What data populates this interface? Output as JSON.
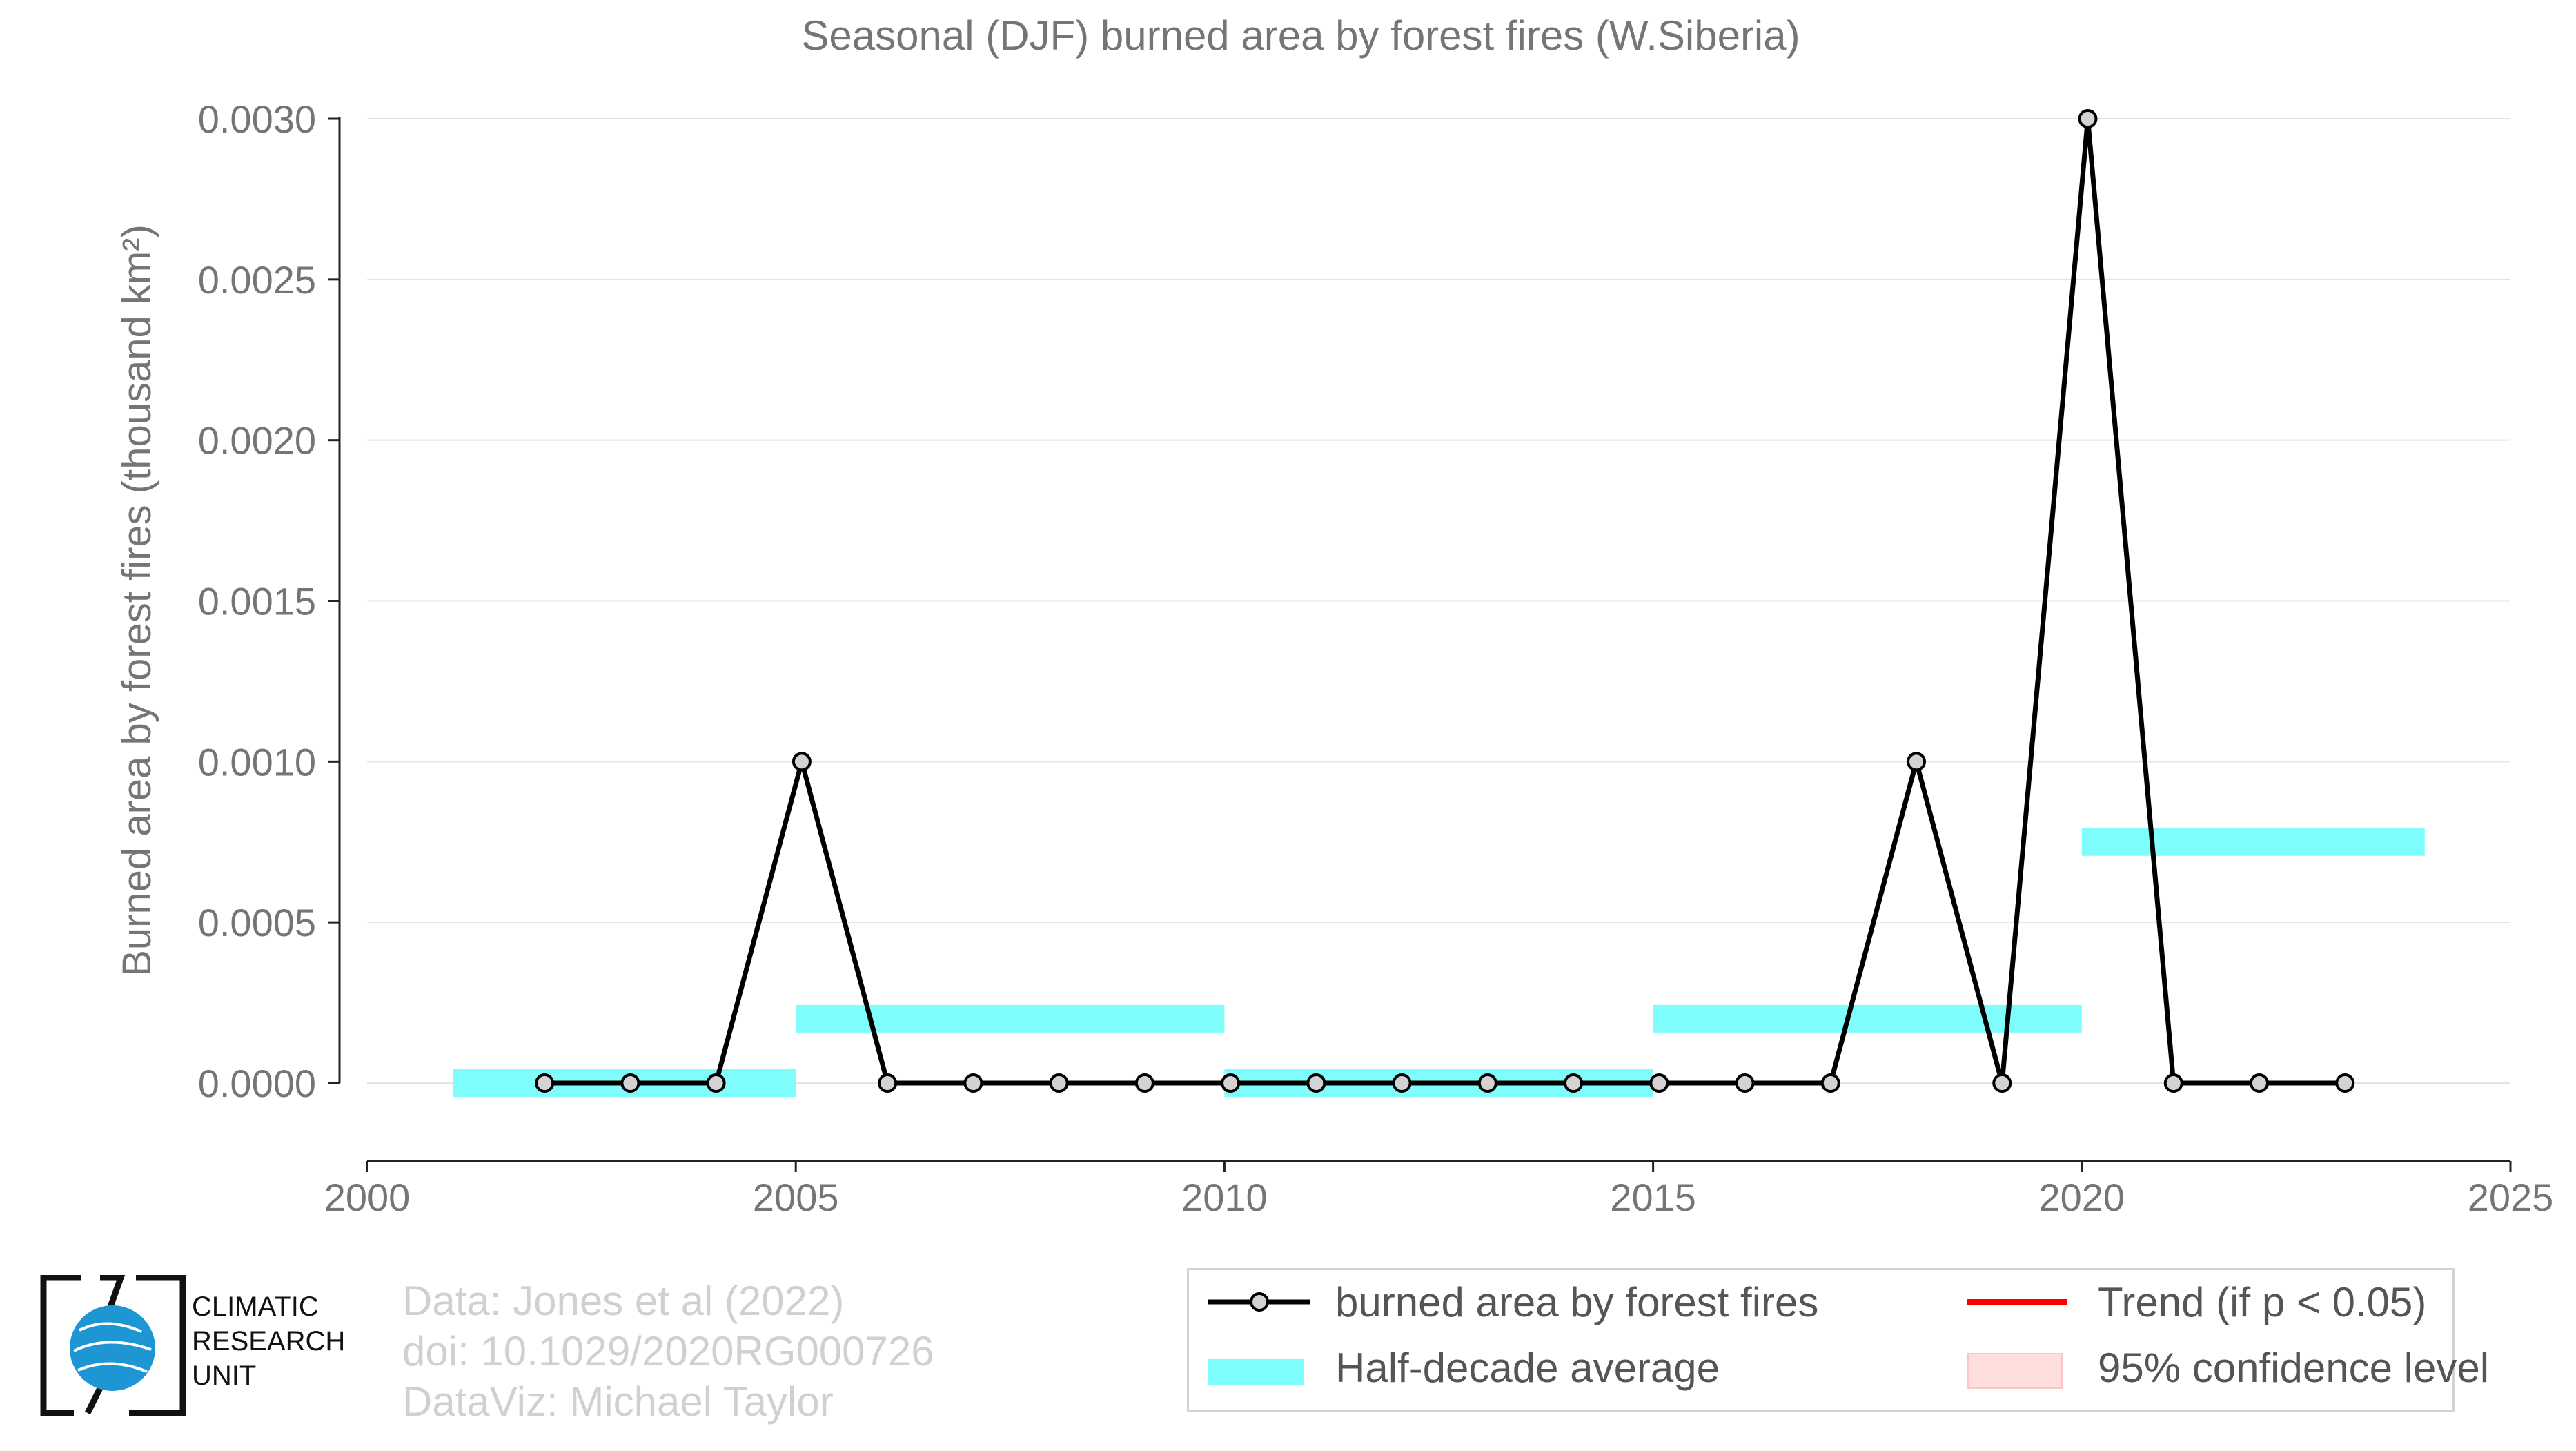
{
  "chart_data": {
    "type": "line",
    "title": "Seasonal (DJF) burned area by forest fires (W.Siberia)",
    "ylabel": "Burned area by forest fires (thousand km²)",
    "xlabel": "",
    "xlim": [
      2000,
      2025
    ],
    "ylim": [
      0.0,
      0.003
    ],
    "x_ticks": [
      "2000",
      "2005",
      "2010",
      "2015",
      "2020",
      "2025"
    ],
    "y_ticks": [
      "0.0000",
      "0.0005",
      "0.0010",
      "0.0015",
      "0.0020",
      "0.0025",
      "0.0030"
    ],
    "grid": "horizontal",
    "legend_position": "bottom-right",
    "series": [
      {
        "name": "burned area by forest fires",
        "color": "#000000",
        "marker_fill": "#d3d3d3",
        "x": [
          2002,
          2003,
          2004,
          2005,
          2006,
          2007,
          2008,
          2009,
          2010,
          2011,
          2012,
          2013,
          2014,
          2015,
          2016,
          2017,
          2018,
          2019,
          2020,
          2021,
          2022,
          2023
        ],
        "y": [
          0,
          0,
          0,
          0.001,
          0,
          0,
          0,
          0,
          0,
          0,
          0,
          0,
          0,
          0,
          0,
          0,
          0.001,
          0,
          0.003,
          0,
          0,
          0
        ]
      }
    ],
    "half_decade_average": {
      "name": "Half-decade average",
      "color": "#7ffdfd",
      "segments": [
        {
          "x0": 2001,
          "x1": 2005,
          "y": 0.0
        },
        {
          "x0": 2005,
          "x1": 2010,
          "y": 0.0002
        },
        {
          "x0": 2010,
          "x1": 2015,
          "y": 0.0
        },
        {
          "x0": 2015,
          "x1": 2020,
          "y": 0.0002
        },
        {
          "x0": 2020,
          "x1": 2024,
          "y": 0.00075
        }
      ]
    },
    "trend": {
      "name": "Trend (if p < 0.05)",
      "color": "#ff0000"
    },
    "confidence": {
      "name": "95% confidence level",
      "color": "#ffdede"
    }
  },
  "credits": {
    "line1": "Data: Jones et al (2022)",
    "line2": "doi: 10.1029/2020RG000726",
    "line3": "DataViz: Michael Taylor"
  },
  "logo": {
    "line1": "CLIMATIC",
    "line2": "RESEARCH",
    "line3": "UNIT"
  }
}
